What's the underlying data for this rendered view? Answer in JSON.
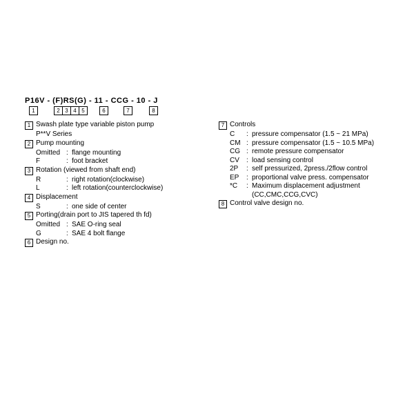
{
  "heading": "P16V - (F)RS(G) - 11 - CCG - 10 - J",
  "boxes": [
    "1",
    "2",
    "3",
    "4",
    "5",
    "6",
    "7",
    "8"
  ],
  "items": [
    {
      "n": "1",
      "title": "Swash plate type variable piston pump",
      "sub": [
        {
          "code": "",
          "text": "P**V Series"
        }
      ]
    },
    {
      "n": "2",
      "title": "Pump mounting",
      "sub": [
        {
          "code": "Omitted",
          "text": "flange mounting"
        },
        {
          "code": "F",
          "text": "foot bracket"
        }
      ]
    },
    {
      "n": "3",
      "title": "Rotation (viewed from shaft end)",
      "sub": [
        {
          "code": "R",
          "text": "right rotation(clockwise)"
        },
        {
          "code": "L",
          "text": "left rotation(counterclockwise)"
        }
      ]
    },
    {
      "n": "4",
      "title": "Displacement",
      "sub": [
        {
          "code": "S",
          "text": "one side of center"
        }
      ]
    },
    {
      "n": "5",
      "title": "Porting(drain port to JIS tapered th  fd)",
      "sub": [
        {
          "code": "Omitted",
          "text": "SAE O-ring seal"
        },
        {
          "code": "G",
          "text": "SAE 4 bolt flange"
        }
      ]
    },
    {
      "n": "6",
      "title": "Design no.",
      "sub": []
    }
  ],
  "items2": [
    {
      "n": "7",
      "title": "Controls",
      "sub": [
        {
          "code": "C",
          "text": "pressure compensator (1.5 ~ 21 MPa)"
        },
        {
          "code": "CM",
          "text": "pressure compensator (1.5 ~ 10.5 MPa)"
        },
        {
          "code": "CG",
          "text": "remote pressure compensator"
        },
        {
          "code": "CV",
          "text": "load sensing control"
        },
        {
          "code": "2P",
          "text": "self pressurized, 2press./2flow control"
        },
        {
          "code": "EP",
          "text": "proportional valve press. compensator"
        },
        {
          "code": "*C",
          "text": "Maximum displacement adjustment"
        },
        {
          "code": "",
          "text": "(CC,CMC,CCG,CVC)"
        }
      ]
    },
    {
      "n": "8",
      "title": "Control valve design no.",
      "sub": []
    }
  ]
}
